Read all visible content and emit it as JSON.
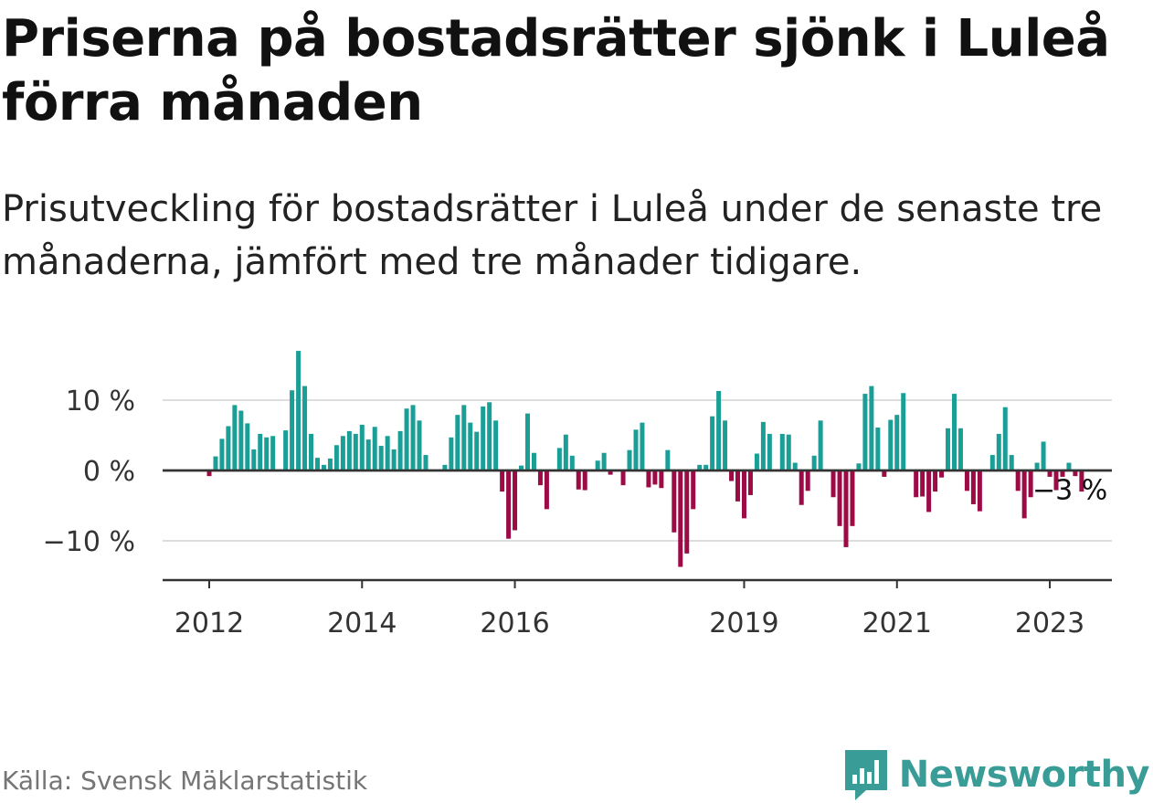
{
  "title": "Priserna på bostadsrätter sjönk i Luleå förra månaden",
  "subtitle": "Prisutveckling för bostadsrätter i Luleå under de senaste tre månaderna, jämfört med tre månader tidigare.",
  "source": "Källa: Svensk Mäklarstatistik",
  "brand": {
    "name": "Newsworthy",
    "icon": "newsworthy-logo-icon",
    "color": "#3a9c97"
  },
  "chart_data": {
    "type": "bar",
    "ylim": [
      -16,
      17
    ],
    "yticks": [
      {
        "value": 10,
        "label": "10 %"
      },
      {
        "value": 0,
        "label": "0 %"
      },
      {
        "value": -10,
        "label": "−10 %"
      }
    ],
    "xticks": [
      {
        "index": 0,
        "label": "2012"
      },
      {
        "index": 24,
        "label": "2014"
      },
      {
        "index": 48,
        "label": "2016"
      },
      {
        "index": 84,
        "label": "2019"
      },
      {
        "index": 108,
        "label": "2021"
      },
      {
        "index": 132,
        "label": "2023"
      }
    ],
    "start_label": "2012",
    "grid": true,
    "colors": {
      "positive": "#1a9e96",
      "negative": "#9c0b46"
    },
    "annotation": {
      "text": "−3 %",
      "index": 135
    },
    "values": [
      -0.8,
      2,
      4.5,
      6.3,
      9.3,
      8.5,
      6.7,
      3,
      5.2,
      4.7,
      4.9,
      0,
      5.7,
      11.4,
      17,
      12,
      5.2,
      1.8,
      0.8,
      1.7,
      3.6,
      4.9,
      5.6,
      5.2,
      6.5,
      4.4,
      6.2,
      3.5,
      4.9,
      3,
      5.6,
      8.8,
      9.3,
      7.1,
      2.2,
      0,
      0,
      0.8,
      4.7,
      7.9,
      9.3,
      6.8,
      5.5,
      9.1,
      9.7,
      7.1,
      -3,
      -9.7,
      -8.5,
      0.7,
      8.1,
      2.5,
      -2.1,
      -5.5,
      0,
      3.2,
      5.1,
      2.1,
      -2.7,
      -2.8,
      0,
      1.4,
      2.5,
      -0.6,
      0,
      -2.1,
      2.9,
      5.8,
      6.8,
      -2.4,
      -2,
      -2.5,
      2.9,
      -8.8,
      -13.7,
      -11.8,
      -5.5,
      0.8,
      0.8,
      7.7,
      11.3,
      7.1,
      -1.5,
      -4.4,
      -6.8,
      -3.5,
      2.4,
      6.9,
      5.2,
      0,
      5.2,
      5.1,
      1.1,
      -4.9,
      -2.9,
      2.1,
      7.1,
      0,
      -3.8,
      -7.9,
      -10.9,
      -7.9,
      1,
      10.9,
      12,
      6.1,
      -0.9,
      7.2,
      7.9,
      11,
      0,
      -3.8,
      -3.7,
      -5.9,
      -3,
      -1,
      6,
      10.9,
      6,
      -2.9,
      -4.8,
      -5.8,
      0,
      2.2,
      5.2,
      9,
      2.2,
      -2.9,
      -6.8,
      -3.8,
      1.1,
      4.1,
      -0.9,
      -2.8,
      -0.9,
      1.1,
      -0.8,
      -3
    ]
  }
}
